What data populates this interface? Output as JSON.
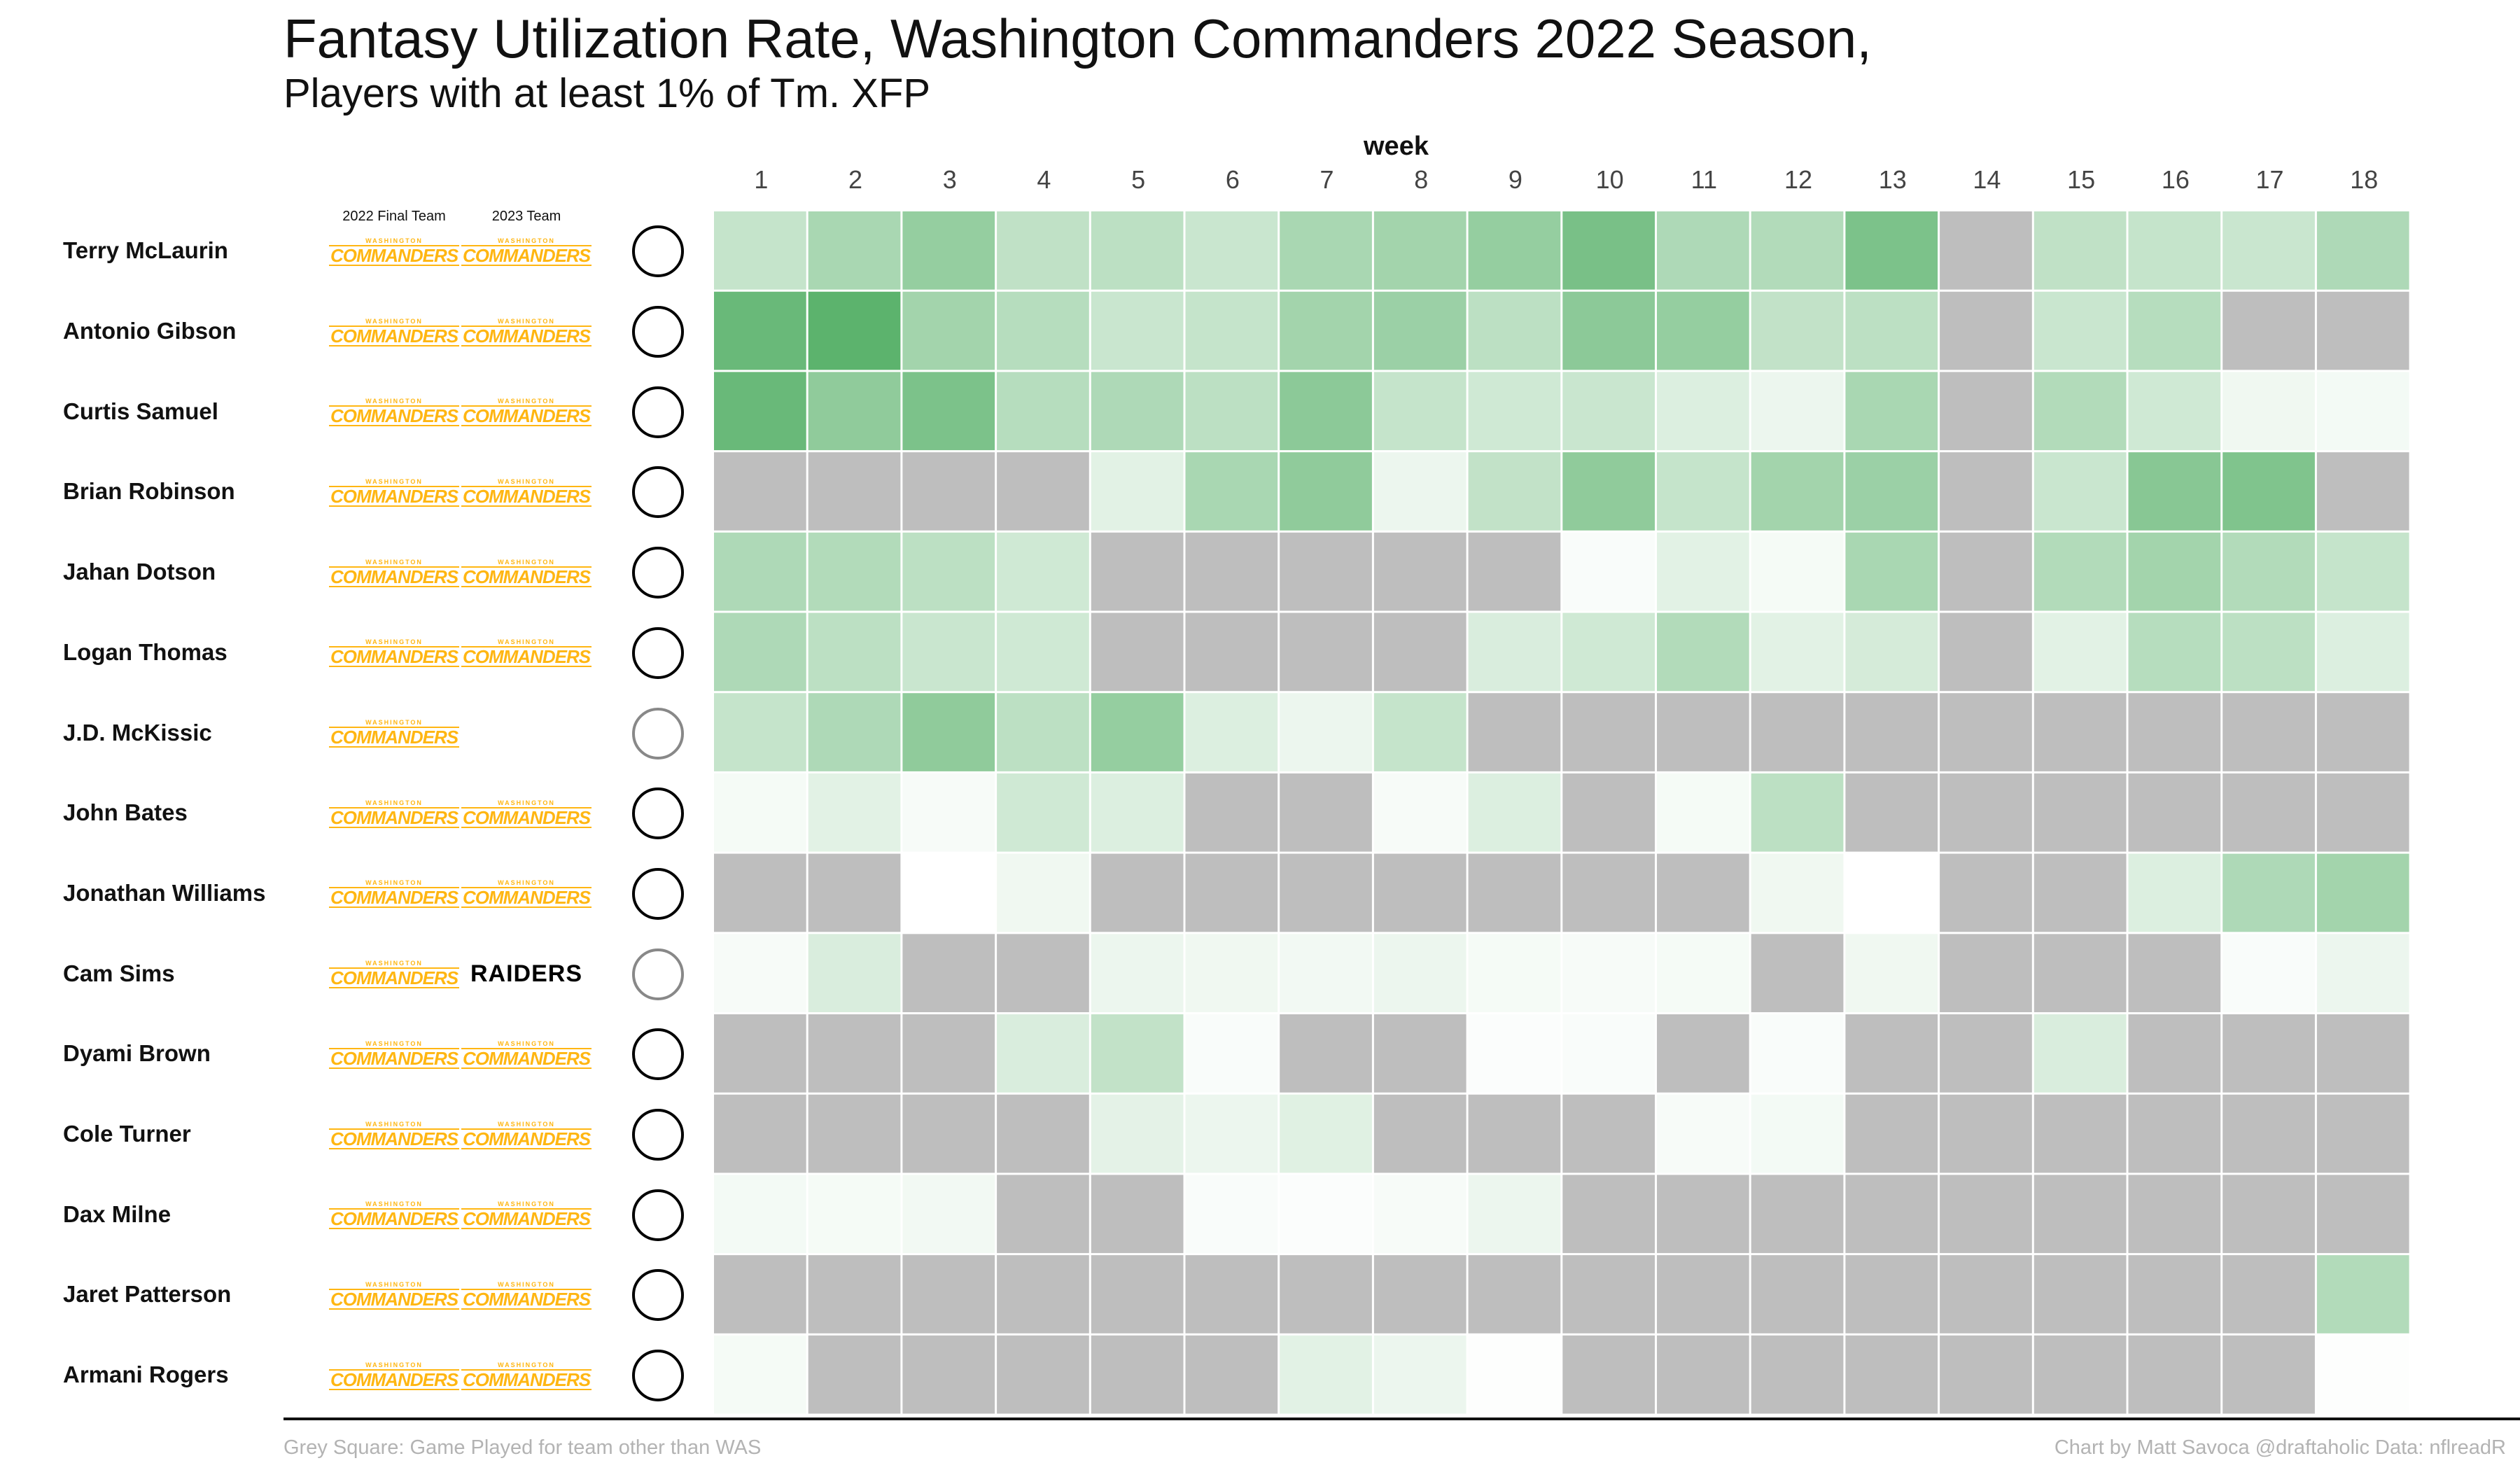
{
  "chart_data": {
    "type": "heatmap",
    "title": "Fantasy Utilization Rate, Washington Commanders 2022 Season,",
    "subtitle": "Players with at least 1% of Tm. XFP",
    "xlabel": "week",
    "x": [
      "1",
      "2",
      "3",
      "4",
      "5",
      "6",
      "7",
      "8",
      "9",
      "10",
      "11",
      "12",
      "13",
      "14",
      "15",
      "16",
      "17",
      "18"
    ],
    "columns": {
      "team2022": "2022 Final Team",
      "team2023": "2023 Team"
    },
    "note": "Grey Square: Game Played for team other than WAS",
    "credit": "Chart by Matt Savoca    @draftaholic    Data: nflreadR",
    "colors": {
      "missing": "#bebebe",
      "low": "#ffffff",
      "high": "#3fa553",
      "grid": "#ffffff"
    },
    "value_scale": "relative utilization, 0–1 (estimated from fill intensity); null = grey square",
    "rows": [
      {
        "name": "Terry McLaurin",
        "team2022": "COMMANDERS",
        "team2023": "COMMANDERS",
        "values": [
          0.3,
          0.45,
          0.55,
          0.33,
          0.35,
          0.28,
          0.45,
          0.48,
          0.55,
          0.7,
          0.42,
          0.4,
          0.68,
          null,
          0.33,
          0.3,
          0.28,
          0.42
        ]
      },
      {
        "name": "Antonio Gibson",
        "team2022": "COMMANDERS",
        "team2023": "COMMANDERS",
        "values": [
          0.78,
          0.85,
          0.48,
          0.38,
          0.28,
          0.3,
          0.48,
          0.52,
          0.35,
          0.6,
          0.55,
          0.32,
          0.35,
          null,
          0.28,
          0.38,
          null,
          null
        ]
      },
      {
        "name": "Curtis Samuel",
        "team2022": "COMMANDERS",
        "team2023": "COMMANDERS",
        "values": [
          0.78,
          0.58,
          0.68,
          0.38,
          0.42,
          0.35,
          0.6,
          0.3,
          0.25,
          0.28,
          0.18,
          0.1,
          0.45,
          null,
          0.4,
          0.25,
          0.08,
          0.06
        ]
      },
      {
        "name": "Brian Robinson",
        "team2022": "COMMANDERS",
        "team2023": "COMMANDERS",
        "values": [
          null,
          null,
          null,
          null,
          0.15,
          0.45,
          0.58,
          0.1,
          0.32,
          0.58,
          0.3,
          0.48,
          0.52,
          null,
          0.28,
          0.62,
          0.66,
          null
        ]
      },
      {
        "name": "Jahan Dotson",
        "team2022": "COMMANDERS",
        "team2023": "COMMANDERS",
        "values": [
          0.42,
          0.4,
          0.35,
          0.25,
          null,
          null,
          null,
          null,
          null,
          0.03,
          0.15,
          0.05,
          0.45,
          null,
          0.4,
          0.48,
          0.4,
          0.3
        ]
      },
      {
        "name": "Logan Thomas",
        "team2022": "COMMANDERS",
        "team2023": "COMMANDERS",
        "values": [
          0.42,
          0.35,
          0.28,
          0.25,
          null,
          null,
          null,
          null,
          0.2,
          0.25,
          0.4,
          0.15,
          0.22,
          null,
          0.15,
          0.38,
          0.35,
          0.18
        ]
      },
      {
        "name": "J.D. McKissic",
        "team2022": "COMMANDERS",
        "team2023": "",
        "values": [
          0.3,
          0.42,
          0.58,
          0.35,
          0.55,
          0.18,
          0.1,
          0.3,
          null,
          null,
          null,
          null,
          null,
          null,
          null,
          null,
          null,
          null
        ]
      },
      {
        "name": "John Bates",
        "team2022": "COMMANDERS",
        "team2023": "COMMANDERS",
        "values": [
          0.05,
          0.15,
          0.04,
          0.25,
          0.18,
          null,
          null,
          0.04,
          0.18,
          null,
          0.05,
          0.35,
          null,
          null,
          null,
          null,
          null,
          null
        ]
      },
      {
        "name": "Jonathan Williams",
        "team2022": "COMMANDERS",
        "team2023": "COMMANDERS",
        "values": [
          null,
          null,
          0.0,
          0.08,
          null,
          null,
          null,
          null,
          null,
          null,
          null,
          0.08,
          0.0,
          null,
          null,
          0.18,
          0.42,
          0.48
        ]
      },
      {
        "name": "Cam Sims",
        "team2022": "COMMANDERS",
        "team2023": "RAIDERS",
        "values": [
          0.04,
          0.2,
          null,
          null,
          0.1,
          0.08,
          0.07,
          0.1,
          0.05,
          0.04,
          0.05,
          null,
          0.08,
          null,
          null,
          null,
          0.03,
          0.1
        ]
      },
      {
        "name": "Dyami Brown",
        "team2022": "COMMANDERS",
        "team2023": "COMMANDERS",
        "values": [
          null,
          null,
          null,
          0.2,
          0.32,
          0.03,
          null,
          null,
          0.02,
          0.03,
          null,
          0.03,
          null,
          null,
          0.2,
          null,
          null,
          null
        ]
      },
      {
        "name": "Cole Turner",
        "team2022": "COMMANDERS",
        "team2023": "COMMANDERS",
        "values": [
          null,
          null,
          null,
          null,
          0.14,
          0.1,
          0.16,
          null,
          null,
          null,
          0.04,
          0.06,
          null,
          null,
          null,
          null,
          null,
          null
        ]
      },
      {
        "name": "Dax Milne",
        "team2022": "COMMANDERS",
        "team2023": "COMMANDERS",
        "values": [
          0.06,
          0.05,
          0.07,
          null,
          null,
          0.03,
          0.02,
          0.04,
          0.1,
          null,
          null,
          null,
          null,
          null,
          null,
          null,
          null,
          null
        ]
      },
      {
        "name": "Jaret Patterson",
        "team2022": "COMMANDERS",
        "team2023": "COMMANDERS",
        "values": [
          null,
          null,
          null,
          null,
          null,
          null,
          null,
          null,
          null,
          null,
          null,
          null,
          null,
          null,
          null,
          null,
          null,
          0.4
        ]
      },
      {
        "name": "Armani Rogers",
        "team2022": "COMMANDERS",
        "team2023": "COMMANDERS",
        "values": [
          0.05,
          null,
          null,
          null,
          null,
          null,
          0.15,
          0.1,
          0.01,
          null,
          null,
          null,
          null,
          null,
          null,
          null,
          null,
          0.01
        ]
      }
    ]
  }
}
